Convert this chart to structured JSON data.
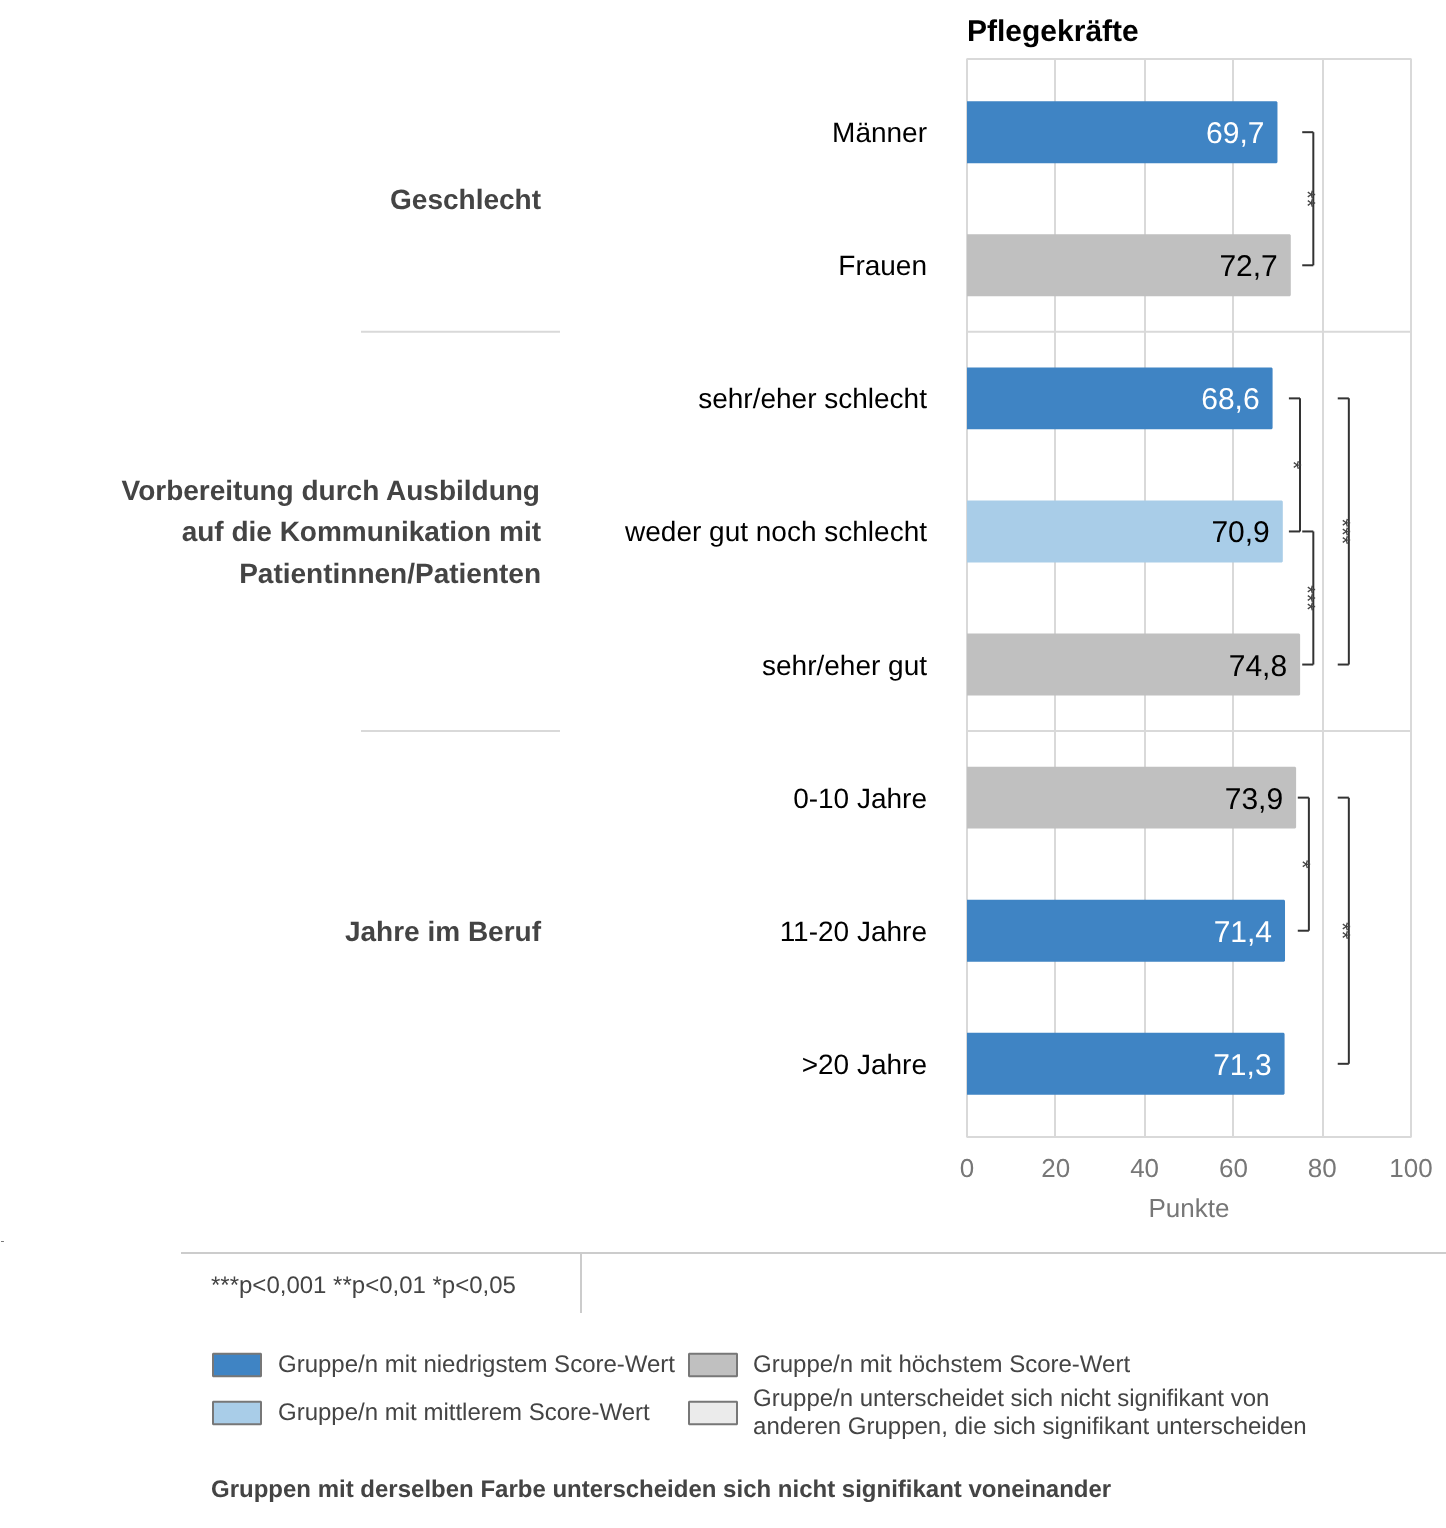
{
  "chart_data": {
    "type": "bar",
    "orientation": "horizontal",
    "title": "Pflegekräfte",
    "xlabel": "Punkte",
    "categories": [
      "Männer",
      "Frauen",
      "sehr/eher schlecht",
      "weder gut noch schlecht",
      "sehr/eher gut",
      "0-10 Jahre",
      "11-20 Jahre",
      ">20 Jahre"
    ],
    "series": [
      {
        "name": "Gruppe/n mit niedrigstem Score-Wert",
        "color": "#3f84c4",
        "values": [
          69.7,
          null,
          68.6,
          null,
          null,
          null,
          71.4,
          71.3
        ],
        "value_labels": [
          "69,7",
          null,
          "68,6",
          null,
          null,
          null,
          "71,4",
          "71,3"
        ]
      },
      {
        "name": "Gruppe/n mit mittlerem Score-Wert",
        "color": "#a9cde8",
        "values": [
          null,
          null,
          null,
          70.9,
          null,
          null,
          null,
          null
        ],
        "value_labels": [
          null,
          null,
          null,
          "70,9",
          null,
          null,
          null,
          null
        ]
      },
      {
        "name": "Gruppe/n mit höchstem Score-Wert",
        "color": "#c0c0c0",
        "values": [
          null,
          72.7,
          null,
          null,
          74.8,
          73.9,
          null,
          null
        ],
        "value_labels": [
          null,
          "72,7",
          null,
          null,
          "74,8",
          "73,9",
          null,
          null
        ]
      },
      {
        "name": "Gruppe/n unterscheidet sich nicht signifikant von anderen Gruppen, die sich signifikant unterscheiden",
        "color": "#ebebeb",
        "values": [
          null,
          null,
          null,
          null,
          null,
          null,
          null,
          null
        ]
      }
    ],
    "xlim": [
      0,
      100
    ],
    "xticks": [
      0,
      20,
      40,
      60,
      80,
      100
    ],
    "grid": "x",
    "legend": "bottom",
    "annotations": [
      "Geschlecht",
      "Vorbereitung durch Ausbildung auf die Kommunikation mit Patientinnen/Patienten",
      "Jahre im Beruf",
      "**",
      "*",
      "***",
      "***",
      "*",
      "**",
      "***p<0,001  **p<0,01  *p<0,05",
      "Gruppen mit derselben Farbe unterscheiden sich nicht signifikant voneinander"
    ]
  }
}
